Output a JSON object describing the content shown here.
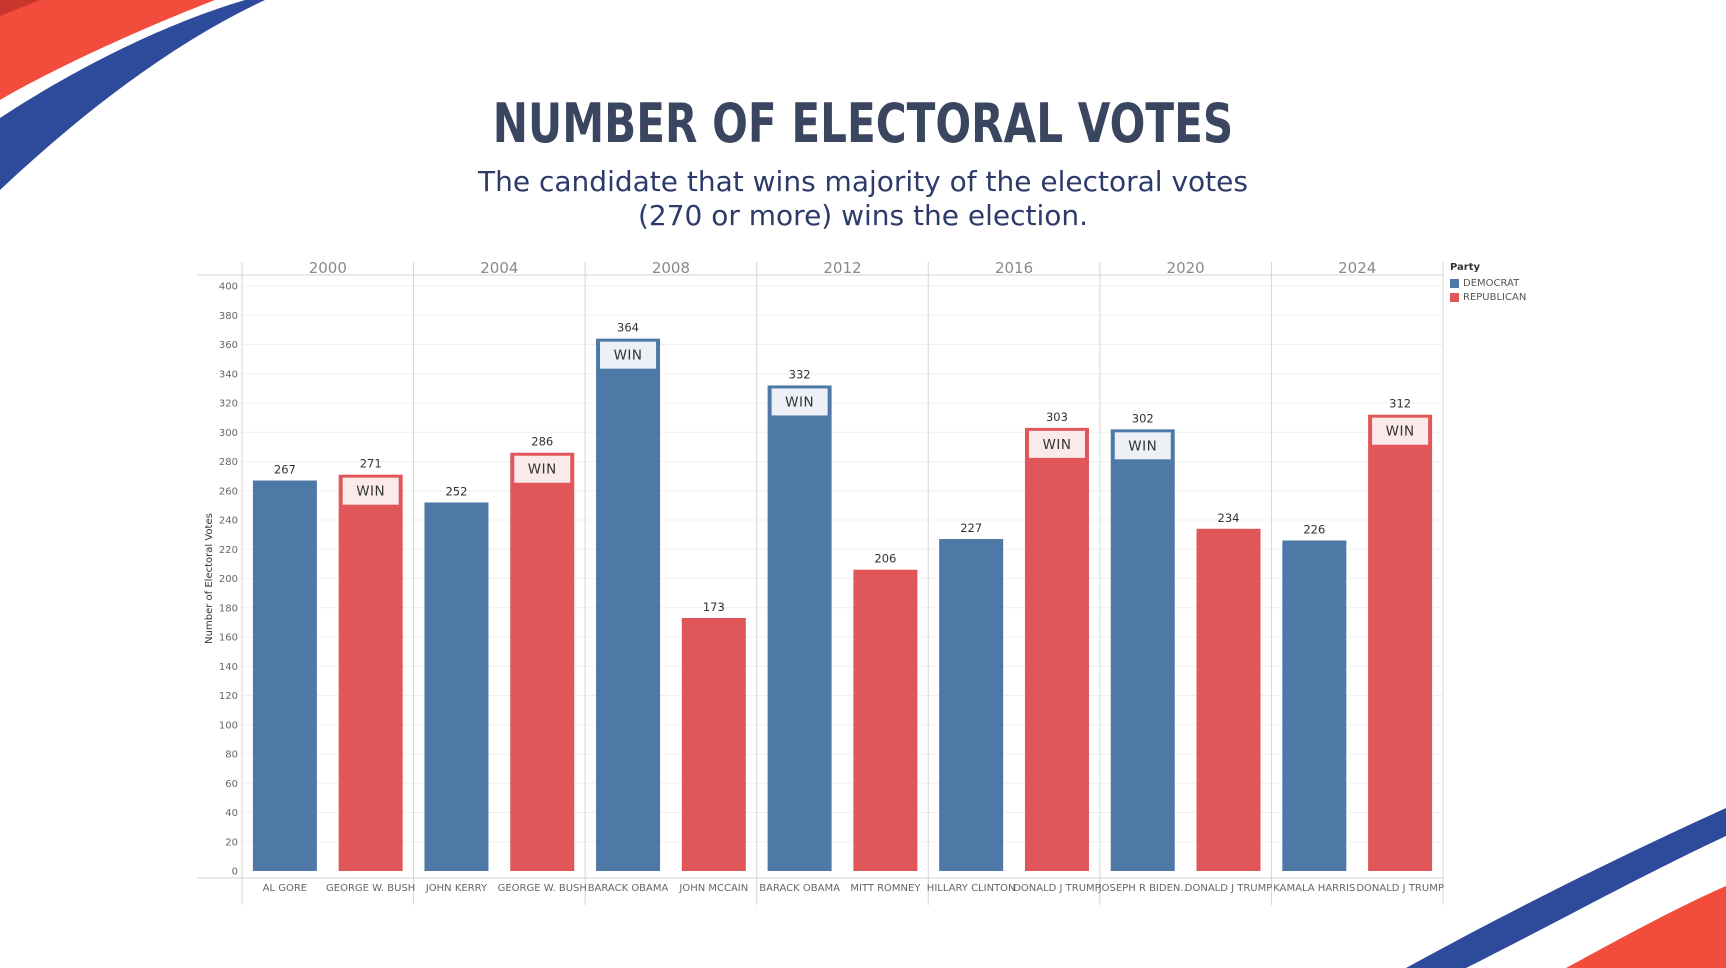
{
  "header": {
    "title": "NUMBER OF ELECTORAL VOTES",
    "subtitle_line1": "The candidate that wins majority of the electoral votes",
    "subtitle_line2": "(270 or more) wins the election."
  },
  "colors": {
    "democrat": "#4e79a7",
    "republican": "#e15759",
    "accent_red": "#f14c3c",
    "accent_blue": "#2e4a9a",
    "text_dark": "#3a4660"
  },
  "legend": {
    "title": "Party",
    "items": [
      {
        "label": "DEMOCRAT",
        "party": "D"
      },
      {
        "label": "REPUBLICAN",
        "party": "R"
      }
    ]
  },
  "chart_data": {
    "type": "bar",
    "title": "NUMBER OF ELECTORAL VOTES",
    "subtitle": "The candidate that wins majority of the electoral votes (270 or more) wins the election.",
    "ylabel": "Number of Electoral Votes",
    "xlabel": "",
    "ylim": [
      0,
      400
    ],
    "yticks": [
      0,
      20,
      40,
      60,
      80,
      100,
      120,
      140,
      160,
      180,
      200,
      220,
      240,
      260,
      280,
      300,
      320,
      340,
      360,
      380,
      400
    ],
    "win_label": "WIN",
    "legend_position": "top-right",
    "grid": true,
    "years": [
      {
        "year": "2000",
        "candidates": [
          {
            "name": "AL GORE",
            "party": "D",
            "votes": 267,
            "win": false
          },
          {
            "name": "GEORGE W. BUSH",
            "party": "R",
            "votes": 271,
            "win": true
          }
        ]
      },
      {
        "year": "2004",
        "candidates": [
          {
            "name": "JOHN KERRY",
            "party": "D",
            "votes": 252,
            "win": false
          },
          {
            "name": "GEORGE W. BUSH",
            "party": "R",
            "votes": 286,
            "win": true
          }
        ]
      },
      {
        "year": "2008",
        "candidates": [
          {
            "name": "BARACK OBAMA",
            "party": "D",
            "votes": 364,
            "win": true
          },
          {
            "name": "JOHN MCCAIN",
            "party": "R",
            "votes": 173,
            "win": false
          }
        ]
      },
      {
        "year": "2012",
        "candidates": [
          {
            "name": "BARACK OBAMA",
            "party": "D",
            "votes": 332,
            "win": true
          },
          {
            "name": "MITT ROMNEY",
            "party": "R",
            "votes": 206,
            "win": false
          }
        ]
      },
      {
        "year": "2016",
        "candidates": [
          {
            "name": "HILLARY CLINTON",
            "party": "D",
            "votes": 227,
            "win": false
          },
          {
            "name": "DONALD J TRUMP",
            "party": "R",
            "votes": 303,
            "win": true
          }
        ]
      },
      {
        "year": "2020",
        "candidates": [
          {
            "name": "JOSEPH R BIDEN..",
            "party": "D",
            "votes": 302,
            "win": true
          },
          {
            "name": "DONALD J TRUMP",
            "party": "R",
            "votes": 234,
            "win": false
          }
        ]
      },
      {
        "year": "2024",
        "candidates": [
          {
            "name": "KAMALA HARRIS",
            "party": "D",
            "votes": 226,
            "win": false
          },
          {
            "name": "DONALD J TRUMP",
            "party": "R",
            "votes": 312,
            "win": true
          }
        ]
      }
    ]
  }
}
